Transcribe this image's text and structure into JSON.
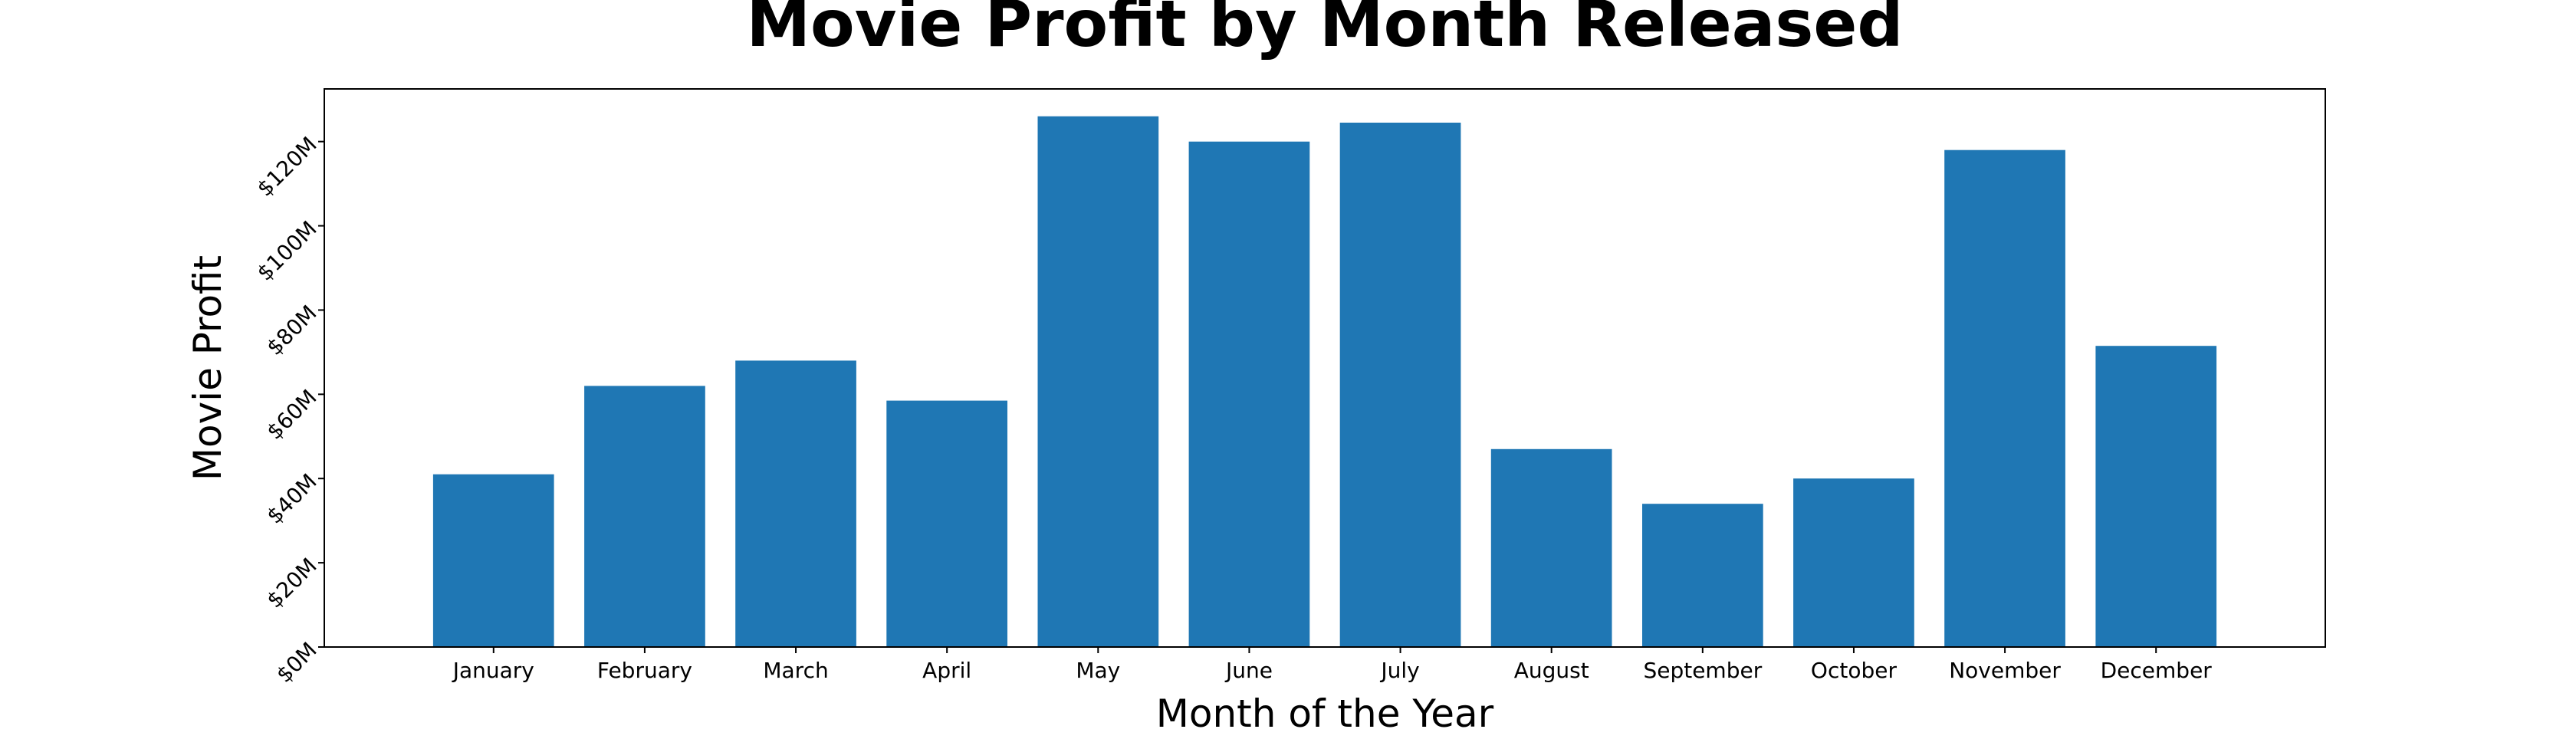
{
  "chart_data": {
    "type": "bar",
    "title": "Movie Profit by Month Released",
    "xlabel": "Month of the Year",
    "ylabel": "Movie Profit",
    "categories": [
      "January",
      "February",
      "March",
      "April",
      "May",
      "June",
      "July",
      "August",
      "September",
      "October",
      "November",
      "December"
    ],
    "values": [
      41,
      62,
      68,
      58.5,
      126,
      120,
      124.5,
      47,
      34,
      40,
      118,
      71.5
    ],
    "value_unit": "$M",
    "y_ticks": [
      {
        "value": 0,
        "label": "$0M"
      },
      {
        "value": 20,
        "label": "$20M"
      },
      {
        "value": 40,
        "label": "$40M"
      },
      {
        "value": 60,
        "label": "$60M"
      },
      {
        "value": 80,
        "label": "$80M"
      },
      {
        "value": 100,
        "label": "$100M"
      },
      {
        "value": 120,
        "label": "$120M"
      }
    ],
    "ylim": [
      0,
      132.5
    ],
    "grid": false,
    "bar_color": "#1f77b4"
  }
}
